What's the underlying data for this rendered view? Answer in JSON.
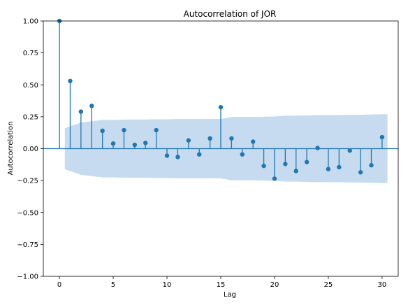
{
  "chart_data": {
    "type": "stem",
    "title": "Autocorrelation of JOR",
    "xlabel": "Lag",
    "ylabel": "Autocorrelation",
    "xlim": [
      -1.5,
      31.5
    ],
    "ylim": [
      -1.0,
      1.0
    ],
    "xticks": [
      0,
      5,
      10,
      15,
      20,
      25,
      30
    ],
    "yticks": [
      -1.0,
      -0.75,
      -0.5,
      -0.25,
      0.0,
      0.25,
      0.5,
      0.75,
      1.0
    ],
    "xtick_labels": [
      "0",
      "5",
      "10",
      "15",
      "20",
      "25",
      "30"
    ],
    "ytick_labels": [
      "−1.00",
      "−0.75",
      "−0.50",
      "−0.25",
      "0.00",
      "0.25",
      "0.50",
      "0.75",
      "1.00"
    ],
    "grid": false,
    "colors": {
      "marker": "#1f77b4",
      "band": "#c6dbef"
    },
    "lags": [
      0,
      1,
      2,
      3,
      4,
      5,
      6,
      7,
      8,
      9,
      10,
      11,
      12,
      13,
      14,
      15,
      16,
      17,
      18,
      19,
      20,
      21,
      22,
      23,
      24,
      25,
      26,
      27,
      28,
      29,
      30
    ],
    "values": [
      1.0,
      0.53,
      0.29,
      0.335,
      0.14,
      0.04,
      0.145,
      0.03,
      0.045,
      0.145,
      -0.055,
      -0.065,
      0.065,
      -0.045,
      0.08,
      0.325,
      0.08,
      -0.045,
      0.055,
      -0.135,
      -0.235,
      -0.12,
      -0.175,
      -0.105,
      0.005,
      -0.16,
      -0.145,
      -0.015,
      -0.185,
      -0.13,
      0.09
    ],
    "confidence_band": {
      "lags": [
        0.5,
        1,
        2,
        3,
        4,
        5,
        6,
        7,
        8,
        9,
        10,
        11,
        12,
        13,
        14,
        15,
        16,
        17,
        18,
        19,
        20,
        21,
        22,
        23,
        24,
        25,
        26,
        27,
        28,
        29,
        30,
        30.5
      ],
      "upper": [
        0.16,
        0.175,
        0.205,
        0.215,
        0.225,
        0.225,
        0.228,
        0.228,
        0.228,
        0.23,
        0.23,
        0.232,
        0.232,
        0.232,
        0.233,
        0.233,
        0.248,
        0.248,
        0.248,
        0.25,
        0.252,
        0.258,
        0.258,
        0.26,
        0.262,
        0.262,
        0.263,
        0.265,
        0.265,
        0.268,
        0.27,
        0.27
      ]
    }
  }
}
